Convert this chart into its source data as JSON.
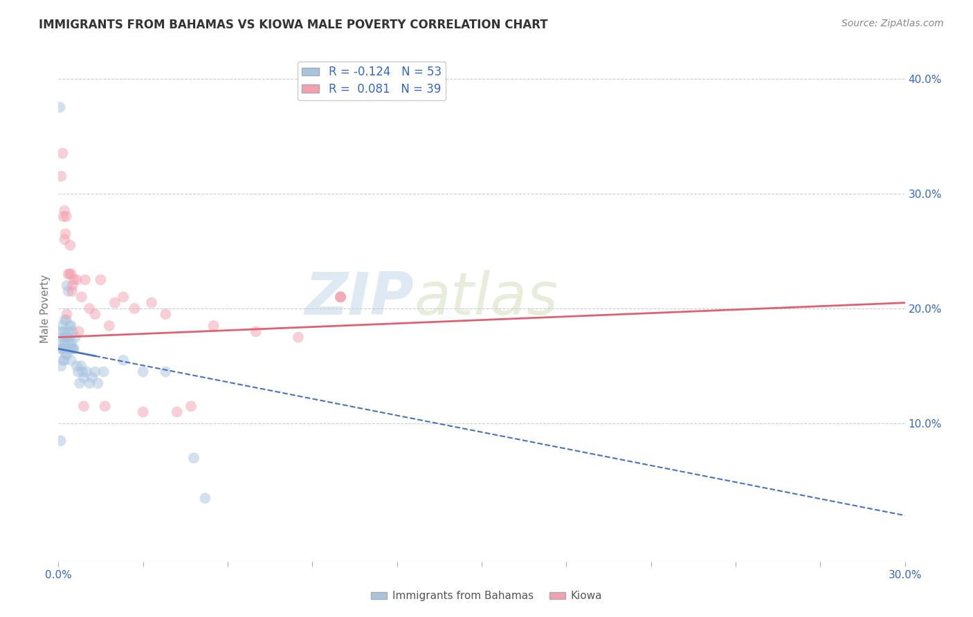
{
  "title": "IMMIGRANTS FROM BAHAMAS VS KIOWA MALE POVERTY CORRELATION CHART",
  "source": "Source: ZipAtlas.com",
  "ylabel": "Male Poverty",
  "x_tick_labels_bottom": [
    "0.0%",
    "30.0%"
  ],
  "x_tick_values_bottom": [
    0,
    30
  ],
  "y_tick_labels": [
    "10.0%",
    "20.0%",
    "30.0%",
    "40.0%"
  ],
  "y_tick_values": [
    10,
    20,
    30,
    40
  ],
  "xlim": [
    0,
    30
  ],
  "ylim": [
    -2,
    42
  ],
  "legend_label1": "Immigrants from Bahamas",
  "legend_label2": "Kiowa",
  "R1": "-0.124",
  "N1": "53",
  "R2": "0.081",
  "N2": "39",
  "color_blue": "#a8c4e0",
  "color_pink": "#f4a0b0",
  "color_line_blue": "#4472c4",
  "color_line_pink": "#e06070",
  "blue_x": [
    0.05,
    0.08,
    0.1,
    0.1,
    0.12,
    0.12,
    0.15,
    0.15,
    0.15,
    0.18,
    0.18,
    0.2,
    0.2,
    0.22,
    0.22,
    0.25,
    0.25,
    0.28,
    0.3,
    0.3,
    0.3,
    0.32,
    0.35,
    0.35,
    0.38,
    0.4,
    0.4,
    0.42,
    0.45,
    0.45,
    0.48,
    0.5,
    0.5,
    0.52,
    0.55,
    0.6,
    0.65,
    0.7,
    0.75,
    0.8,
    0.85,
    0.9,
    1.0,
    1.1,
    1.2,
    1.3,
    1.4,
    1.6,
    2.3,
    3.0,
    3.8,
    4.8,
    5.2
  ],
  "blue_y": [
    37.5,
    8.5,
    15.0,
    16.5,
    17.0,
    18.0,
    16.5,
    17.5,
    18.5,
    16.5,
    15.5,
    18.0,
    15.5,
    17.0,
    19.0,
    16.0,
    17.5,
    19.0,
    16.0,
    17.5,
    22.0,
    16.5,
    18.0,
    21.5,
    17.5,
    17.0,
    18.5,
    16.5,
    18.5,
    15.5,
    17.0,
    16.5,
    18.0,
    16.5,
    16.5,
    17.5,
    15.0,
    14.5,
    13.5,
    15.0,
    14.5,
    14.0,
    14.5,
    13.5,
    14.0,
    14.5,
    13.5,
    14.5,
    15.5,
    14.5,
    14.5,
    7.0,
    3.5
  ],
  "pink_x": [
    0.1,
    0.15,
    0.18,
    0.22,
    0.22,
    0.25,
    0.28,
    0.3,
    0.35,
    0.4,
    0.42,
    0.45,
    0.48,
    0.5,
    0.55,
    0.65,
    0.72,
    0.82,
    0.9,
    0.95,
    1.1,
    1.3,
    1.5,
    1.65,
    1.8,
    2.0,
    2.3,
    2.7,
    3.0,
    3.3,
    3.8,
    4.2,
    4.7,
    5.5,
    7.0,
    8.5,
    10.0,
    10.0,
    10.0
  ],
  "pink_y": [
    31.5,
    33.5,
    28.0,
    28.5,
    26.0,
    26.5,
    28.0,
    19.5,
    23.0,
    23.0,
    25.5,
    23.0,
    21.5,
    22.0,
    22.5,
    22.5,
    18.0,
    21.0,
    11.5,
    22.5,
    20.0,
    19.5,
    22.5,
    11.5,
    18.5,
    20.5,
    21.0,
    20.0,
    11.0,
    20.5,
    19.5,
    11.0,
    11.5,
    18.5,
    18.0,
    17.5,
    21.0,
    21.0,
    21.0
  ],
  "watermark_zip": "ZIP",
  "watermark_atlas": "atlas",
  "dot_size": 130,
  "dot_alpha": 0.5,
  "line_solid_end_blue_x": 1.3,
  "line_blue_x_start": 0.0,
  "line_blue_x_end": 30.0,
  "line_blue_y_start": 16.5,
  "line_blue_y_end": 2.0,
  "line_pink_x_start": 0.0,
  "line_pink_x_end": 30.0,
  "line_pink_y_start": 17.5,
  "line_pink_y_end": 20.5,
  "grid_color": "#cccccc",
  "axis_color": "#aaaaaa",
  "tick_color": "#3366cc",
  "title_color": "#333333",
  "source_color": "#888888",
  "ylabel_color": "#777777"
}
